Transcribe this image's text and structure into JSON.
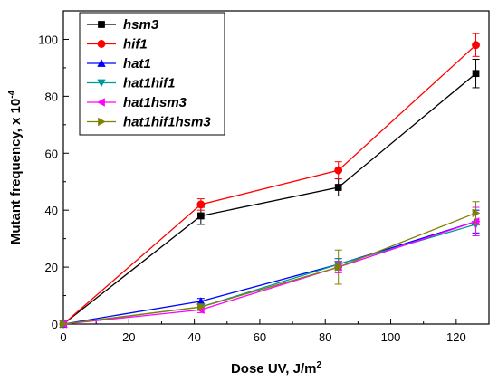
{
  "chart_data": {
    "type": "line",
    "xlabel_main": "Dose UV, J/m",
    "xlabel_sup": "2",
    "ylabel_main": "Mutant frequency, x 10",
    "ylabel_sup": "-4",
    "xlim": [
      0,
      130
    ],
    "ylim": [
      0,
      110
    ],
    "xticks": [
      0,
      20,
      40,
      60,
      80,
      100,
      120
    ],
    "yticks": [
      0,
      20,
      40,
      60,
      80,
      100
    ],
    "legend_position": "top-left",
    "series": [
      {
        "name": "hsm3",
        "color": "#000000",
        "marker": "square",
        "x": [
          0,
          42,
          84,
          126
        ],
        "y": [
          0,
          38,
          48,
          88
        ],
        "err": [
          0,
          3,
          3,
          5
        ]
      },
      {
        "name": "hif1",
        "color": "#ff0000",
        "marker": "circle",
        "x": [
          0,
          42,
          84,
          126
        ],
        "y": [
          0,
          42,
          54,
          98
        ],
        "err": [
          0,
          2,
          3,
          4
        ]
      },
      {
        "name": "hat1",
        "color": "#0000ff",
        "marker": "triangle-up",
        "x": [
          0,
          42,
          84,
          126
        ],
        "y": [
          0,
          8,
          21,
          36
        ],
        "err": [
          0,
          1,
          2,
          4
        ]
      },
      {
        "name": "hat1hif1",
        "color": "#009999",
        "marker": "triangle-down",
        "x": [
          0,
          42,
          84,
          126
        ],
        "y": [
          0,
          6,
          21,
          35
        ],
        "err": [
          0,
          1,
          2,
          4
        ]
      },
      {
        "name": "hat1hsm3",
        "color": "#ff00ff",
        "marker": "triangle-left",
        "x": [
          0,
          42,
          84,
          126
        ],
        "y": [
          0,
          5,
          20,
          36
        ],
        "err": [
          0,
          1,
          2,
          5
        ]
      },
      {
        "name": "hat1hif1hsm3",
        "color": "#808000",
        "marker": "triangle-right",
        "x": [
          0,
          42,
          84,
          126
        ],
        "y": [
          0,
          6,
          20,
          39
        ],
        "err": [
          0,
          1,
          6,
          4
        ]
      }
    ]
  }
}
